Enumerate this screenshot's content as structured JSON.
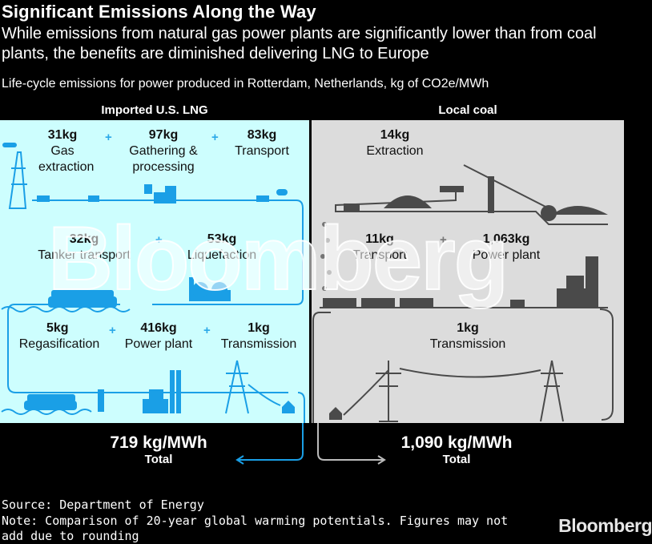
{
  "header": {
    "title": "Significant Emissions Along the Way",
    "subtitle": "While emissions from natural gas power plants are significantly lower than from coal plants, the benefits are diminished delivering LNG to Europe",
    "units": "Life-cycle emissions for power produced in Rotterdam, Netherlands, kg of CO2e/MWh"
  },
  "lng": {
    "heading": "Imported U.S. LNG",
    "stages": [
      {
        "value": "31kg",
        "label": "Gas extraction"
      },
      {
        "value": "97kg",
        "label": "Gathering & processing"
      },
      {
        "value": "83kg",
        "label": "Transport"
      },
      {
        "value": "32kg",
        "label": "Tanker transport"
      },
      {
        "value": "53kg",
        "label": "Liquefaction"
      },
      {
        "value": "5kg",
        "label": "Regasification"
      },
      {
        "value": "416kg",
        "label": "Power plant"
      },
      {
        "value": "1kg",
        "label": "Transmission"
      }
    ],
    "total_value": "719 kg/MWh",
    "total_label": "Total"
  },
  "coal": {
    "heading": "Local coal",
    "stages": [
      {
        "value": "14kg",
        "label": "Extraction"
      },
      {
        "value": "11kg",
        "label": "Transport"
      },
      {
        "value": "1,063kg",
        "label": "Power plant"
      },
      {
        "value": "1kg",
        "label": "Transmission"
      }
    ],
    "total_value": "1,090 kg/MWh",
    "total_label": "Total"
  },
  "plus_sign": "+",
  "watermark": "Bloomberg",
  "footer": {
    "source": "Source: Department of Energy",
    "note": "Note: Comparison of 20-year global warming potentials. Figures may not add due to rounding",
    "logo": "Bloomberg"
  },
  "colors": {
    "lng_panel": "#cdfefe",
    "coal_panel": "#dcdcdc",
    "lng_accent": "#1a9fe6",
    "coal_accent": "#4a4a4a"
  }
}
